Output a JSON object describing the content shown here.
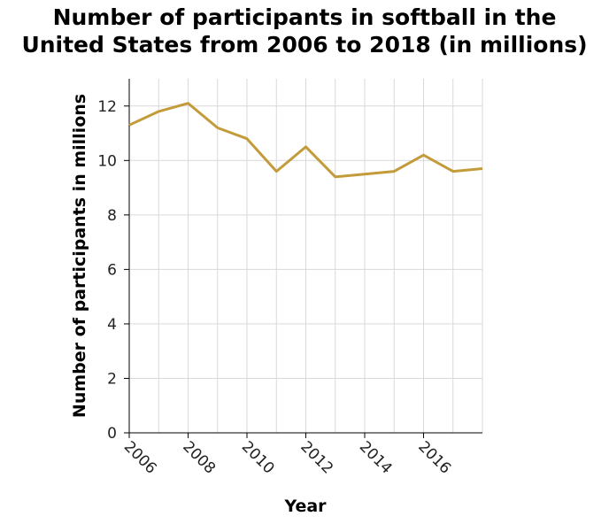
{
  "chart_data": {
    "type": "line",
    "title_lines": [
      "Number of participants in softball in the",
      "United States from 2006 to 2018 (in millions)"
    ],
    "xlabel": "Year",
    "ylabel": "Number of participants in millions",
    "xlim": [
      2006,
      2018
    ],
    "ylim": [
      0,
      13
    ],
    "x_ticks": [
      2006,
      2008,
      2010,
      2012,
      2014,
      2016
    ],
    "y_ticks": [
      0,
      2,
      4,
      6,
      8,
      10,
      12
    ],
    "grid": true,
    "line_color": "#c39b3a",
    "series": [
      {
        "x": [
          2006,
          2007,
          2008,
          2009,
          2010,
          2011,
          2012,
          2013,
          2014,
          2015,
          2016,
          2017,
          2018
        ],
        "values": [
          11.3,
          11.8,
          12.1,
          11.2,
          10.8,
          9.6,
          10.5,
          9.4,
          9.5,
          9.6,
          10.2,
          9.6,
          9.7
        ]
      }
    ]
  }
}
